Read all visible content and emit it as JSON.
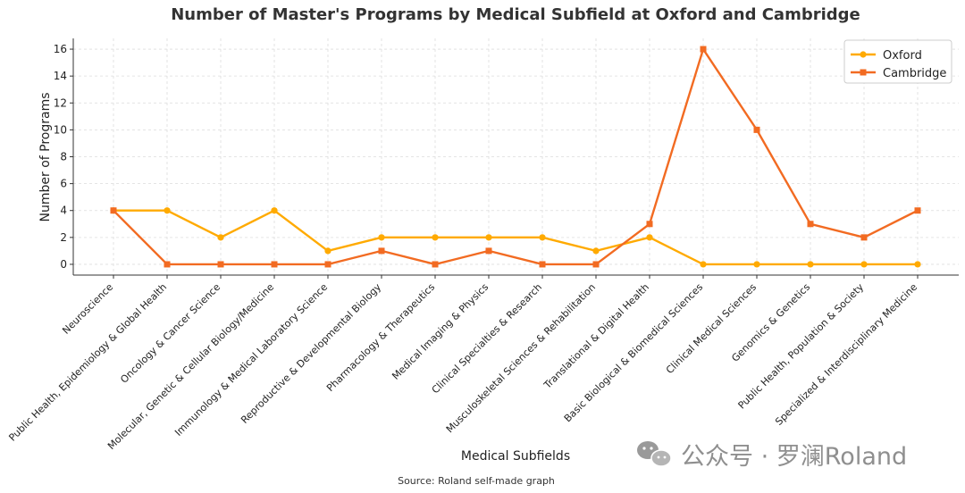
{
  "chart_data": {
    "type": "line",
    "title": "Number of Master's Programs by Medical Subfield at Oxford and Cambridge",
    "xlabel": "Medical Subfields",
    "ylabel": "Number of Programs",
    "ylim": [
      -0.8,
      16.8
    ],
    "yticks": [
      0,
      2,
      4,
      6,
      8,
      10,
      12,
      14,
      16
    ],
    "grid": true,
    "legend_position": "top-right",
    "categories": [
      "Neuroscience",
      "Public Health, Epidemiology & Global Health",
      "Oncology & Cancer Science",
      "Molecular, Genetic & Cellular Biology/Medicine",
      "Immunology & Medical Laboratory Science",
      "Reproductive & Developmental Biology",
      "Pharmacology & Therapeutics",
      "Medical Imaging & Physics",
      "Clinical Specialties & Research",
      "Musculoskeletal Sciences & Rehabilitation",
      "Translational & Digital Health",
      "Basic Biological & Biomedical Sciences",
      "Clinical Medical Sciences",
      "Genomics & Genetics",
      "Public Health, Population & Society",
      "Specialized & Interdisciplinary Medicine"
    ],
    "series": [
      {
        "name": "Oxford",
        "color": "#ffaa00",
        "marker": "circle",
        "values": [
          4,
          4,
          2,
          4,
          1,
          2,
          2,
          2,
          2,
          1,
          2,
          0,
          0,
          0,
          0,
          0
        ]
      },
      {
        "name": "Cambridge",
        "color": "#f26b22",
        "marker": "square",
        "values": [
          4,
          0,
          0,
          0,
          0,
          1,
          0,
          1,
          0,
          0,
          3,
          16,
          10,
          3,
          2,
          4
        ]
      }
    ]
  },
  "source": "Source: Roland self-made graph",
  "watermark": "公众号 · 罗澜Roland"
}
